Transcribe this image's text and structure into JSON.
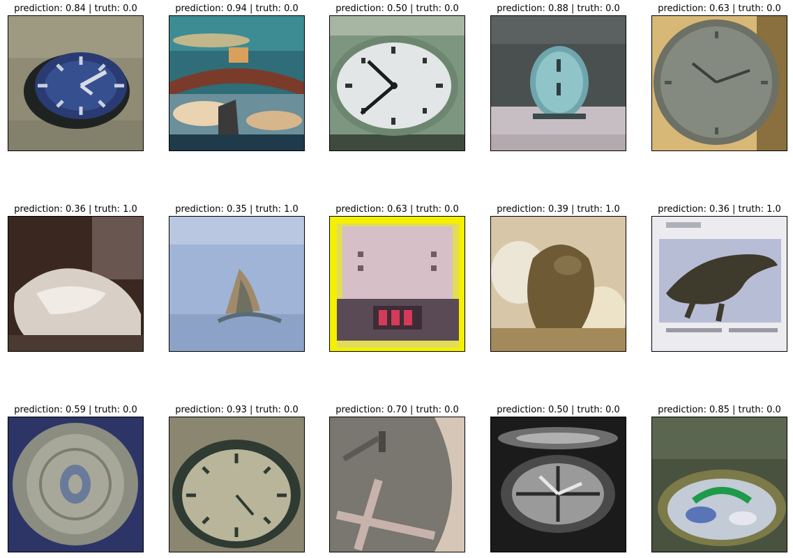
{
  "panels": [
    {
      "caption": "prediction: 0.84 | truth: 0.0",
      "image": "oval-wall-clock-icon"
    },
    {
      "caption": "prediction: 0.94 | truth: 0.0",
      "image": "reflective-clock-closeup-icon"
    },
    {
      "caption": "prediction: 0.50 | truth: 0.0",
      "image": "white-oval-clock-icon"
    },
    {
      "caption": "prediction: 0.88 | truth: 0.0",
      "image": "blue-alarm-clock-icon"
    },
    {
      "caption": "prediction: 0.63 | truth: 0.0",
      "image": "round-gray-clock-icon"
    },
    {
      "caption": "prediction: 0.36 | truth: 1.0",
      "image": "white-blurry-animal-icon"
    },
    {
      "caption": "prediction: 0.35 | truth: 1.0",
      "image": "water-shark-fin-icon"
    },
    {
      "caption": "prediction: 0.63 | truth: 0.0",
      "image": "digital-alarm-clock-icon"
    },
    {
      "caption": "prediction: 0.39 | truth: 1.0",
      "image": "brown-animal-eggs-icon"
    },
    {
      "caption": "prediction: 0.36 | truth: 1.0",
      "image": "crocodile-drawing-icon"
    },
    {
      "caption": "prediction: 0.59 | truth: 0.0",
      "image": "ornate-blue-clock-icon"
    },
    {
      "caption": "prediction: 0.93 | truth: 0.0",
      "image": "dark-green-clock-icon"
    },
    {
      "caption": "prediction: 0.70 | truth: 0.0",
      "image": "clock-hands-closeup-icon"
    },
    {
      "caption": "prediction: 0.50 | truth: 0.0",
      "image": "black-white-clock-icon"
    },
    {
      "caption": "prediction: 0.85 | truth: 0.0",
      "image": "garden-floral-clock-icon"
    }
  ]
}
